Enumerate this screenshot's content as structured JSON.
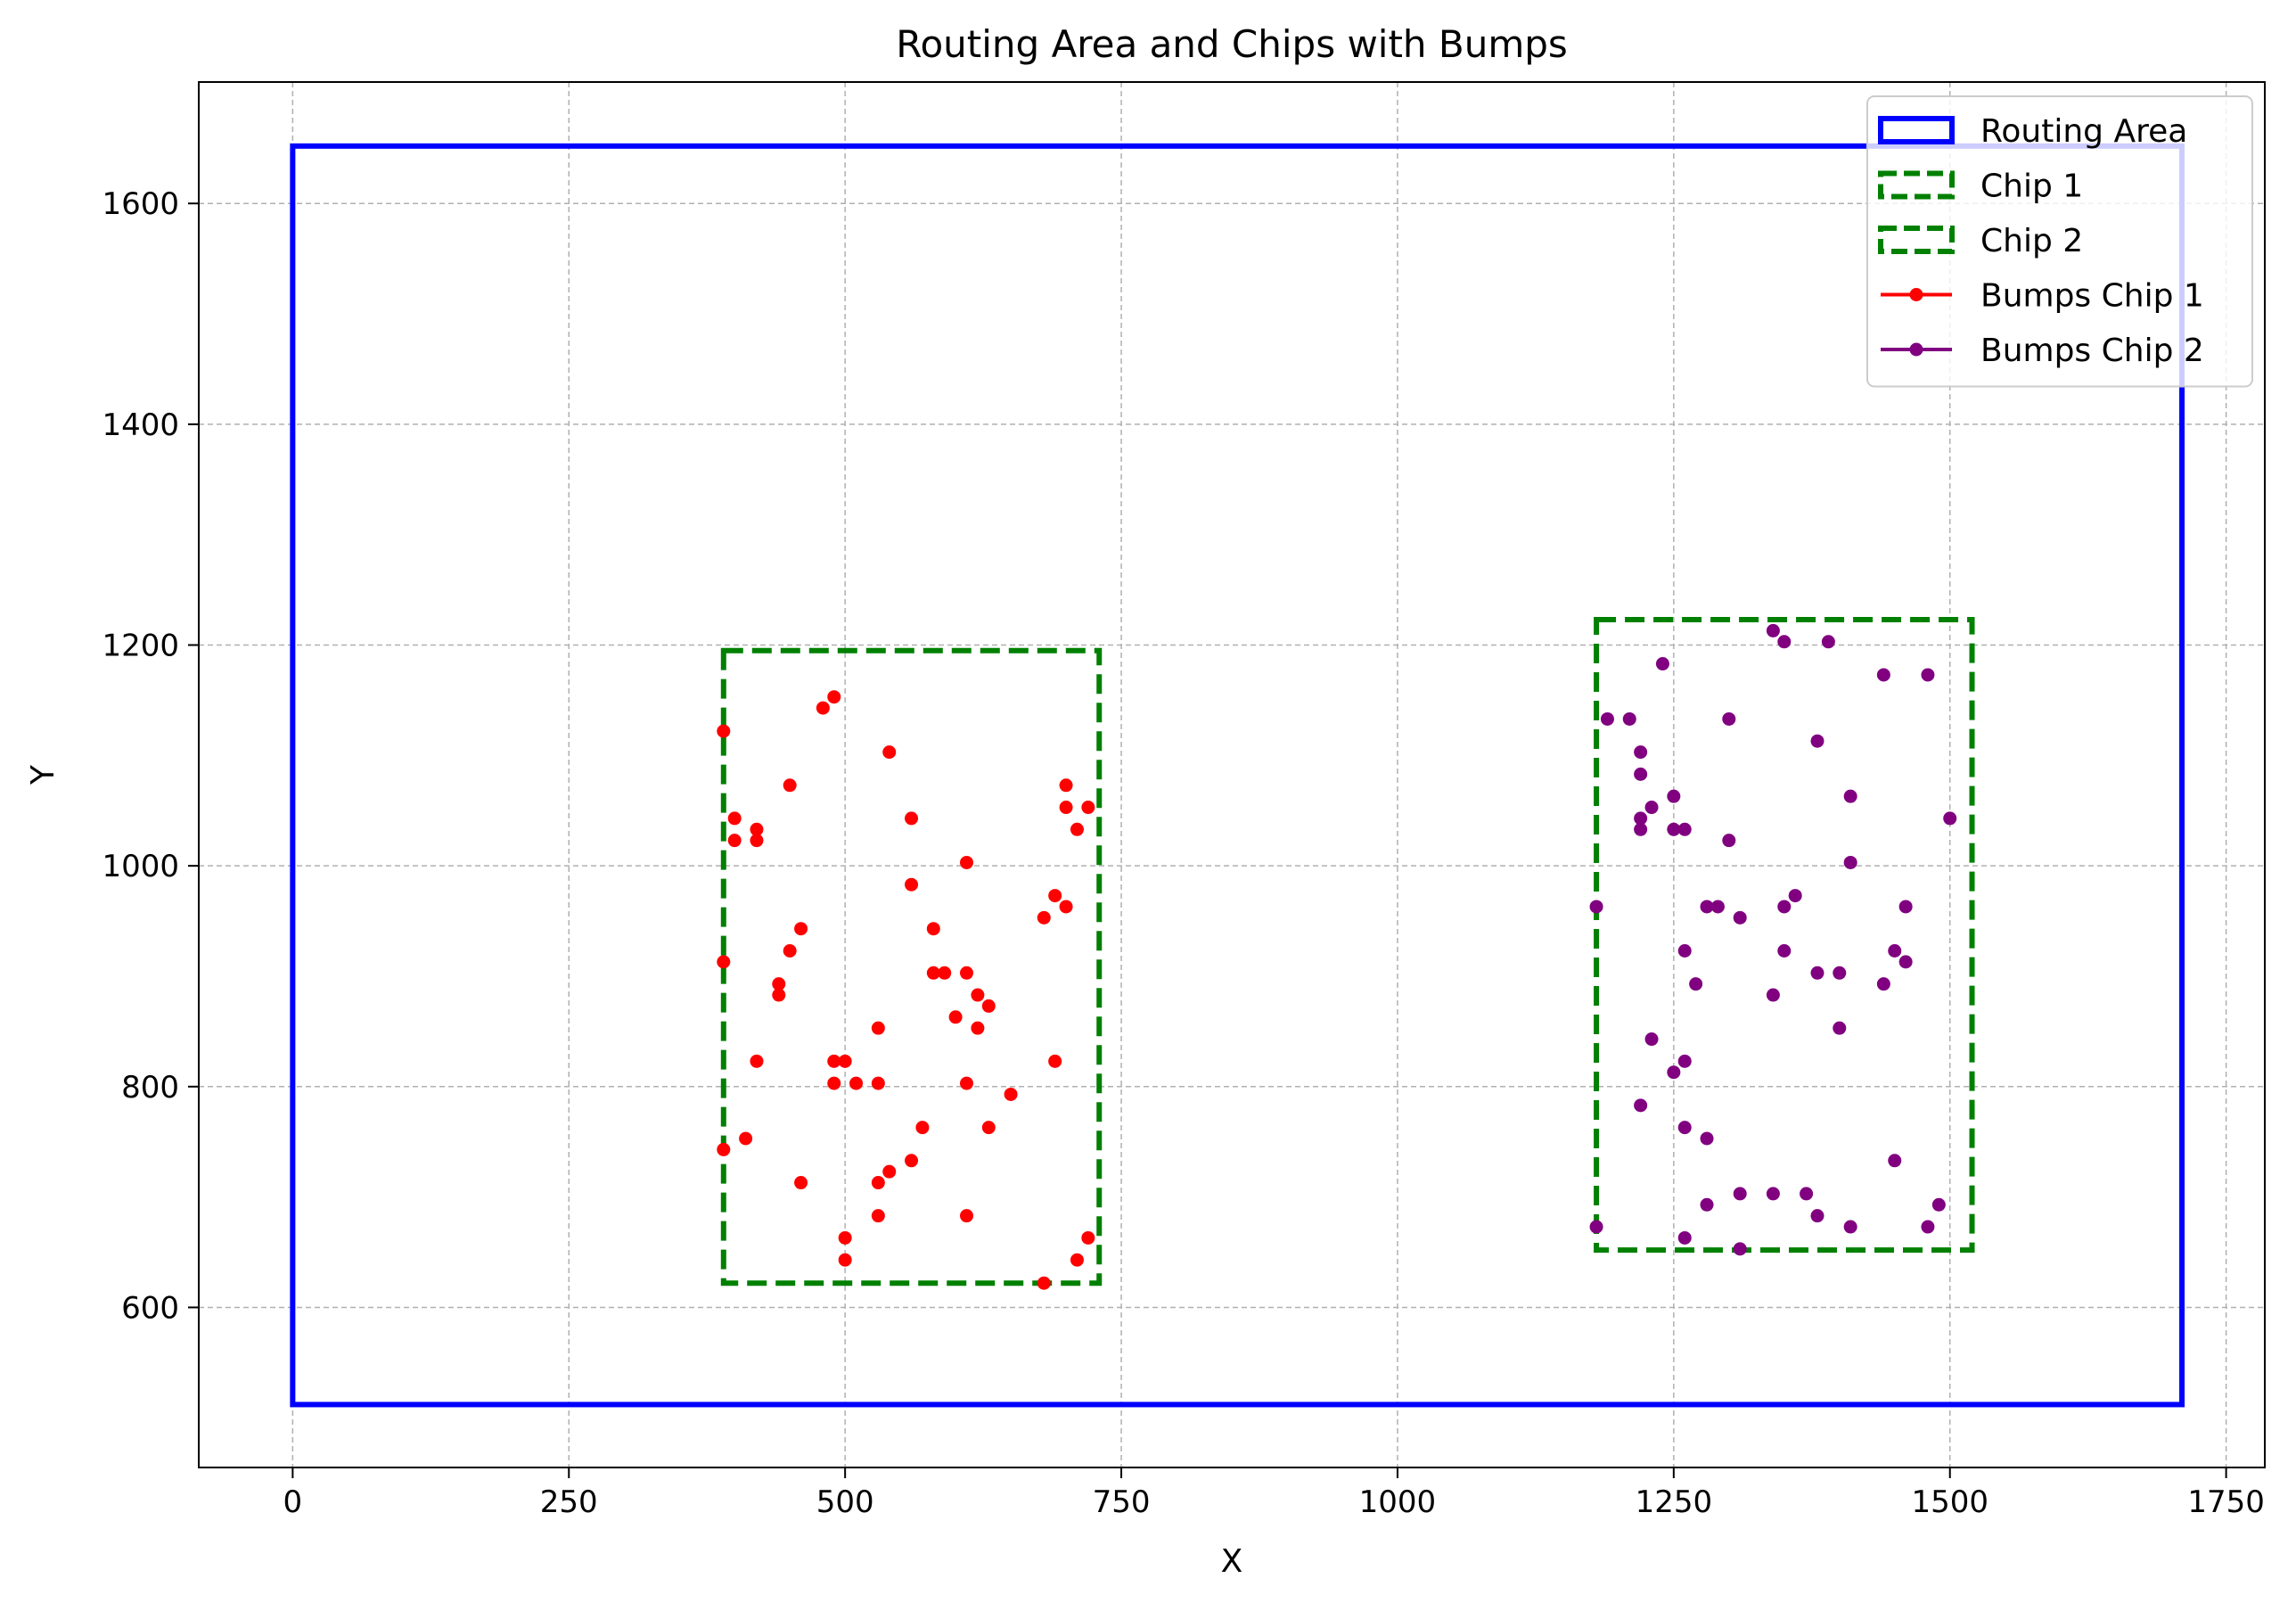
{
  "chart_data": {
    "type": "scatter",
    "title": "Routing Area and Chips with Bumps",
    "xlabel": "X",
    "ylabel": "Y",
    "xlim": [
      -85,
      1785
    ],
    "ylim": [
      455,
      1710
    ],
    "xticks": [
      0,
      250,
      500,
      750,
      1000,
      1250,
      1500,
      1750
    ],
    "yticks": [
      600,
      800,
      1000,
      1200,
      1400,
      1600
    ],
    "grid": true,
    "legend_position": "top-right",
    "rectangles": [
      {
        "name": "Routing Area",
        "x0": 0,
        "y0": 512,
        "x1": 1710,
        "y1": 1652,
        "color": "#0000ff",
        "style": "solid"
      },
      {
        "name": "Chip 1",
        "x0": 390,
        "y0": 622,
        "x1": 730,
        "y1": 1195,
        "color": "#008000",
        "style": "dashed"
      },
      {
        "name": "Chip 2",
        "x0": 1180,
        "y0": 652,
        "x1": 1520,
        "y1": 1223,
        "color": "#008000",
        "style": "dashed"
      }
    ],
    "series": [
      {
        "name": "Bumps Chip 1",
        "color": "#ff0000",
        "points": [
          [
            390,
            1122
          ],
          [
            480,
            1143
          ],
          [
            490,
            1153
          ],
          [
            540,
            1103
          ],
          [
            450,
            1073
          ],
          [
            700,
            1073
          ],
          [
            700,
            1053
          ],
          [
            720,
            1053
          ],
          [
            710,
            1033
          ],
          [
            400,
            1043
          ],
          [
            400,
            1023
          ],
          [
            420,
            1033
          ],
          [
            420,
            1023
          ],
          [
            560,
            1043
          ],
          [
            610,
            1003
          ],
          [
            560,
            983
          ],
          [
            690,
            973
          ],
          [
            700,
            963
          ],
          [
            680,
            953
          ],
          [
            460,
            943
          ],
          [
            580,
            943
          ],
          [
            450,
            923
          ],
          [
            390,
            913
          ],
          [
            580,
            903
          ],
          [
            590,
            903
          ],
          [
            610,
            903
          ],
          [
            440,
            893
          ],
          [
            440,
            883
          ],
          [
            620,
            883
          ],
          [
            630,
            873
          ],
          [
            600,
            863
          ],
          [
            620,
            853
          ],
          [
            530,
            853
          ],
          [
            420,
            823
          ],
          [
            490,
            823
          ],
          [
            500,
            823
          ],
          [
            690,
            823
          ],
          [
            490,
            803
          ],
          [
            510,
            803
          ],
          [
            530,
            803
          ],
          [
            610,
            803
          ],
          [
            650,
            793
          ],
          [
            630,
            763
          ],
          [
            570,
            763
          ],
          [
            410,
            753
          ],
          [
            390,
            743
          ],
          [
            560,
            733
          ],
          [
            540,
            723
          ],
          [
            460,
            713
          ],
          [
            530,
            713
          ],
          [
            530,
            683
          ],
          [
            610,
            683
          ],
          [
            500,
            663
          ],
          [
            720,
            663
          ],
          [
            500,
            643
          ],
          [
            710,
            643
          ],
          [
            680,
            622
          ]
        ]
      },
      {
        "name": "Bumps Chip 2",
        "color": "#800080",
        "points": [
          [
            1340,
            1213
          ],
          [
            1350,
            1203
          ],
          [
            1390,
            1203
          ],
          [
            1240,
            1183
          ],
          [
            1440,
            1173
          ],
          [
            1480,
            1173
          ],
          [
            1190,
            1133
          ],
          [
            1210,
            1133
          ],
          [
            1300,
            1133
          ],
          [
            1380,
            1113
          ],
          [
            1220,
            1103
          ],
          [
            1220,
            1083
          ],
          [
            1250,
            1063
          ],
          [
            1410,
            1063
          ],
          [
            1230,
            1053
          ],
          [
            1220,
            1043
          ],
          [
            1500,
            1043
          ],
          [
            1220,
            1033
          ],
          [
            1250,
            1033
          ],
          [
            1260,
            1033
          ],
          [
            1300,
            1023
          ],
          [
            1410,
            1003
          ],
          [
            1360,
            973
          ],
          [
            1180,
            963
          ],
          [
            1280,
            963
          ],
          [
            1290,
            963
          ],
          [
            1350,
            963
          ],
          [
            1460,
            963
          ],
          [
            1310,
            953
          ],
          [
            1260,
            923
          ],
          [
            1350,
            923
          ],
          [
            1450,
            923
          ],
          [
            1460,
            913
          ],
          [
            1380,
            903
          ],
          [
            1400,
            903
          ],
          [
            1270,
            893
          ],
          [
            1440,
            893
          ],
          [
            1340,
            883
          ],
          [
            1400,
            853
          ],
          [
            1230,
            843
          ],
          [
            1260,
            823
          ],
          [
            1250,
            813
          ],
          [
            1220,
            783
          ],
          [
            1260,
            763
          ],
          [
            1280,
            753
          ],
          [
            1450,
            733
          ],
          [
            1310,
            703
          ],
          [
            1340,
            703
          ],
          [
            1370,
            703
          ],
          [
            1280,
            693
          ],
          [
            1490,
            693
          ],
          [
            1380,
            683
          ],
          [
            1180,
            673
          ],
          [
            1410,
            673
          ],
          [
            1480,
            673
          ],
          [
            1260,
            663
          ],
          [
            1310,
            653
          ]
        ]
      }
    ],
    "legend": [
      {
        "label": "Routing Area",
        "kind": "rect",
        "color": "#0000ff",
        "style": "solid"
      },
      {
        "label": "Chip 1",
        "kind": "rect",
        "color": "#008000",
        "style": "dashed"
      },
      {
        "label": "Chip 2",
        "kind": "rect",
        "color": "#008000",
        "style": "dashed"
      },
      {
        "label": "Bumps Chip 1",
        "kind": "line",
        "color": "#ff0000"
      },
      {
        "label": "Bumps Chip 2",
        "kind": "line",
        "color": "#800080"
      }
    ]
  }
}
